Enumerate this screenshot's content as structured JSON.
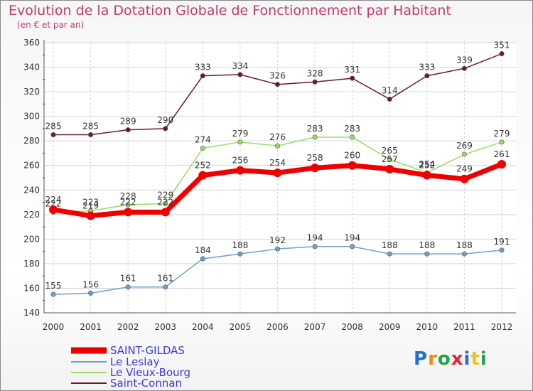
{
  "title": "Evolution de la Dotation Globale de Fonctionnement par Habitant",
  "subtitle": "(en € et par an)",
  "logo": {
    "text": "Proxiti",
    "letters": [
      {
        "ch": "P",
        "color": "#1f6fd1"
      },
      {
        "ch": "r",
        "color": "#f28a1a"
      },
      {
        "ch": "o",
        "color": "#1fa34a"
      },
      {
        "ch": "x",
        "color": "#e6262f"
      },
      {
        "ch": "i",
        "color": "#1f6fd1"
      },
      {
        "ch": "t",
        "color": "#f2c21a"
      },
      {
        "ch": "i",
        "color": "#1fa34a"
      }
    ]
  },
  "chart_data": {
    "type": "line",
    "title": "Evolution de la Dotation Globale de Fonctionnement par Habitant",
    "ylabel": "(en € et par an)",
    "xlabel": "",
    "x": [
      "2000",
      "2001",
      "2002",
      "2003",
      "2004",
      "2005",
      "2006",
      "2007",
      "2008",
      "2009",
      "2010",
      "2011",
      "2012"
    ],
    "ylim": [
      140,
      360
    ],
    "yticks": [
      140,
      160,
      180,
      200,
      220,
      240,
      260,
      280,
      300,
      320,
      340,
      360
    ],
    "series": [
      {
        "name": "SAINT-GILDAS",
        "color": "#ee0000",
        "values": [
          224,
          219,
          222,
          222,
          252,
          256,
          254,
          258,
          260,
          257,
          252,
          249,
          261
        ]
      },
      {
        "name": "Le Leslay",
        "color": "#6fa0cc",
        "values": [
          155,
          156,
          161,
          161,
          184,
          188,
          192,
          194,
          194,
          188,
          188,
          188,
          191
        ]
      },
      {
        "name": "Le Vieux-Bourg",
        "color": "#99dd66",
        "values": [
          222,
          223,
          228,
          229,
          274,
          279,
          276,
          283,
          283,
          265,
          254,
          269,
          279
        ]
      },
      {
        "name": "Saint-Connan",
        "color": "#6b1a28",
        "values": [
          285,
          285,
          289,
          290,
          333,
          334,
          326,
          328,
          331,
          314,
          333,
          339,
          351
        ]
      }
    ]
  }
}
